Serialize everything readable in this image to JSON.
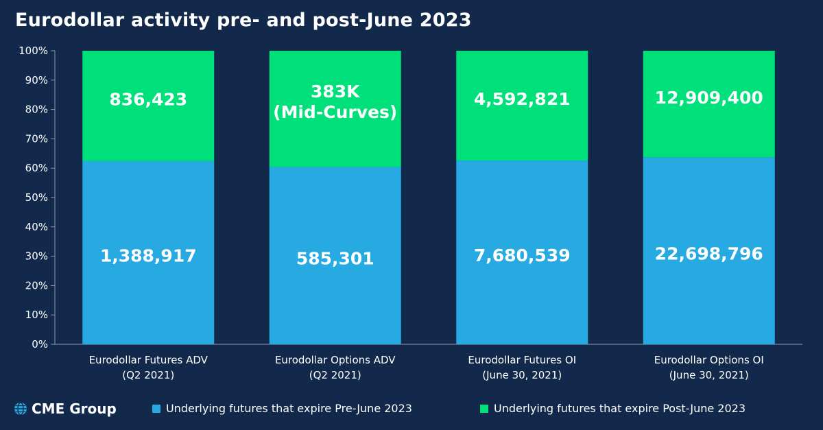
{
  "header": {
    "title": "Eurodollar activity pre- and post-June 2023"
  },
  "brand": {
    "name": "CME Group",
    "logo_icon": "globe-icon"
  },
  "colors": {
    "background": "#13294b",
    "pre_june": "#27a9e1",
    "post_june": "#00e07a",
    "axis": "#8a97a8"
  },
  "legend": [
    {
      "label": "Underlying futures that expire Pre-June 2023",
      "color": "#27a9e1"
    },
    {
      "label": "Underlying futures that expire Post-June 2023",
      "color": "#00e07a"
    }
  ],
  "chart_data": {
    "type": "bar",
    "stacked": true,
    "percent_stacked": true,
    "title": "Eurodollar activity pre- and post-June 2023",
    "categories": [
      [
        "Eurodollar Futures ADV",
        "(Q2 2021)"
      ],
      [
        "Eurodollar Options ADV",
        "(Q2 2021)"
      ],
      [
        "Eurodollar Futures OI",
        "(June 30, 2021)"
      ],
      [
        "Eurodollar Options OI",
        "(June 30, 2021)"
      ]
    ],
    "ylim": [
      0,
      100
    ],
    "yticks": [
      "0%",
      "10%",
      "20%",
      "30%",
      "40%",
      "50%",
      "60%",
      "70%",
      "80%",
      "90%",
      "100%"
    ],
    "grid": false,
    "legend_position": "bottom",
    "series": [
      {
        "name": "Underlying futures that expire Pre-June 2023",
        "color": "#27a9e1",
        "values": [
          62.4,
          60.4,
          62.6,
          63.7
        ],
        "labels": [
          [
            "1,388,917"
          ],
          [
            "585,301"
          ],
          [
            "7,680,539"
          ],
          [
            "22,698,796"
          ]
        ]
      },
      {
        "name": "Underlying futures that expire Post-June 2023",
        "color": "#00e07a",
        "values": [
          37.6,
          39.6,
          37.4,
          36.3
        ],
        "labels": [
          [
            "836,423"
          ],
          [
            "383K",
            "(Mid-Curves)"
          ],
          [
            "4,592,821"
          ],
          [
            "12,909,400"
          ]
        ]
      }
    ]
  }
}
